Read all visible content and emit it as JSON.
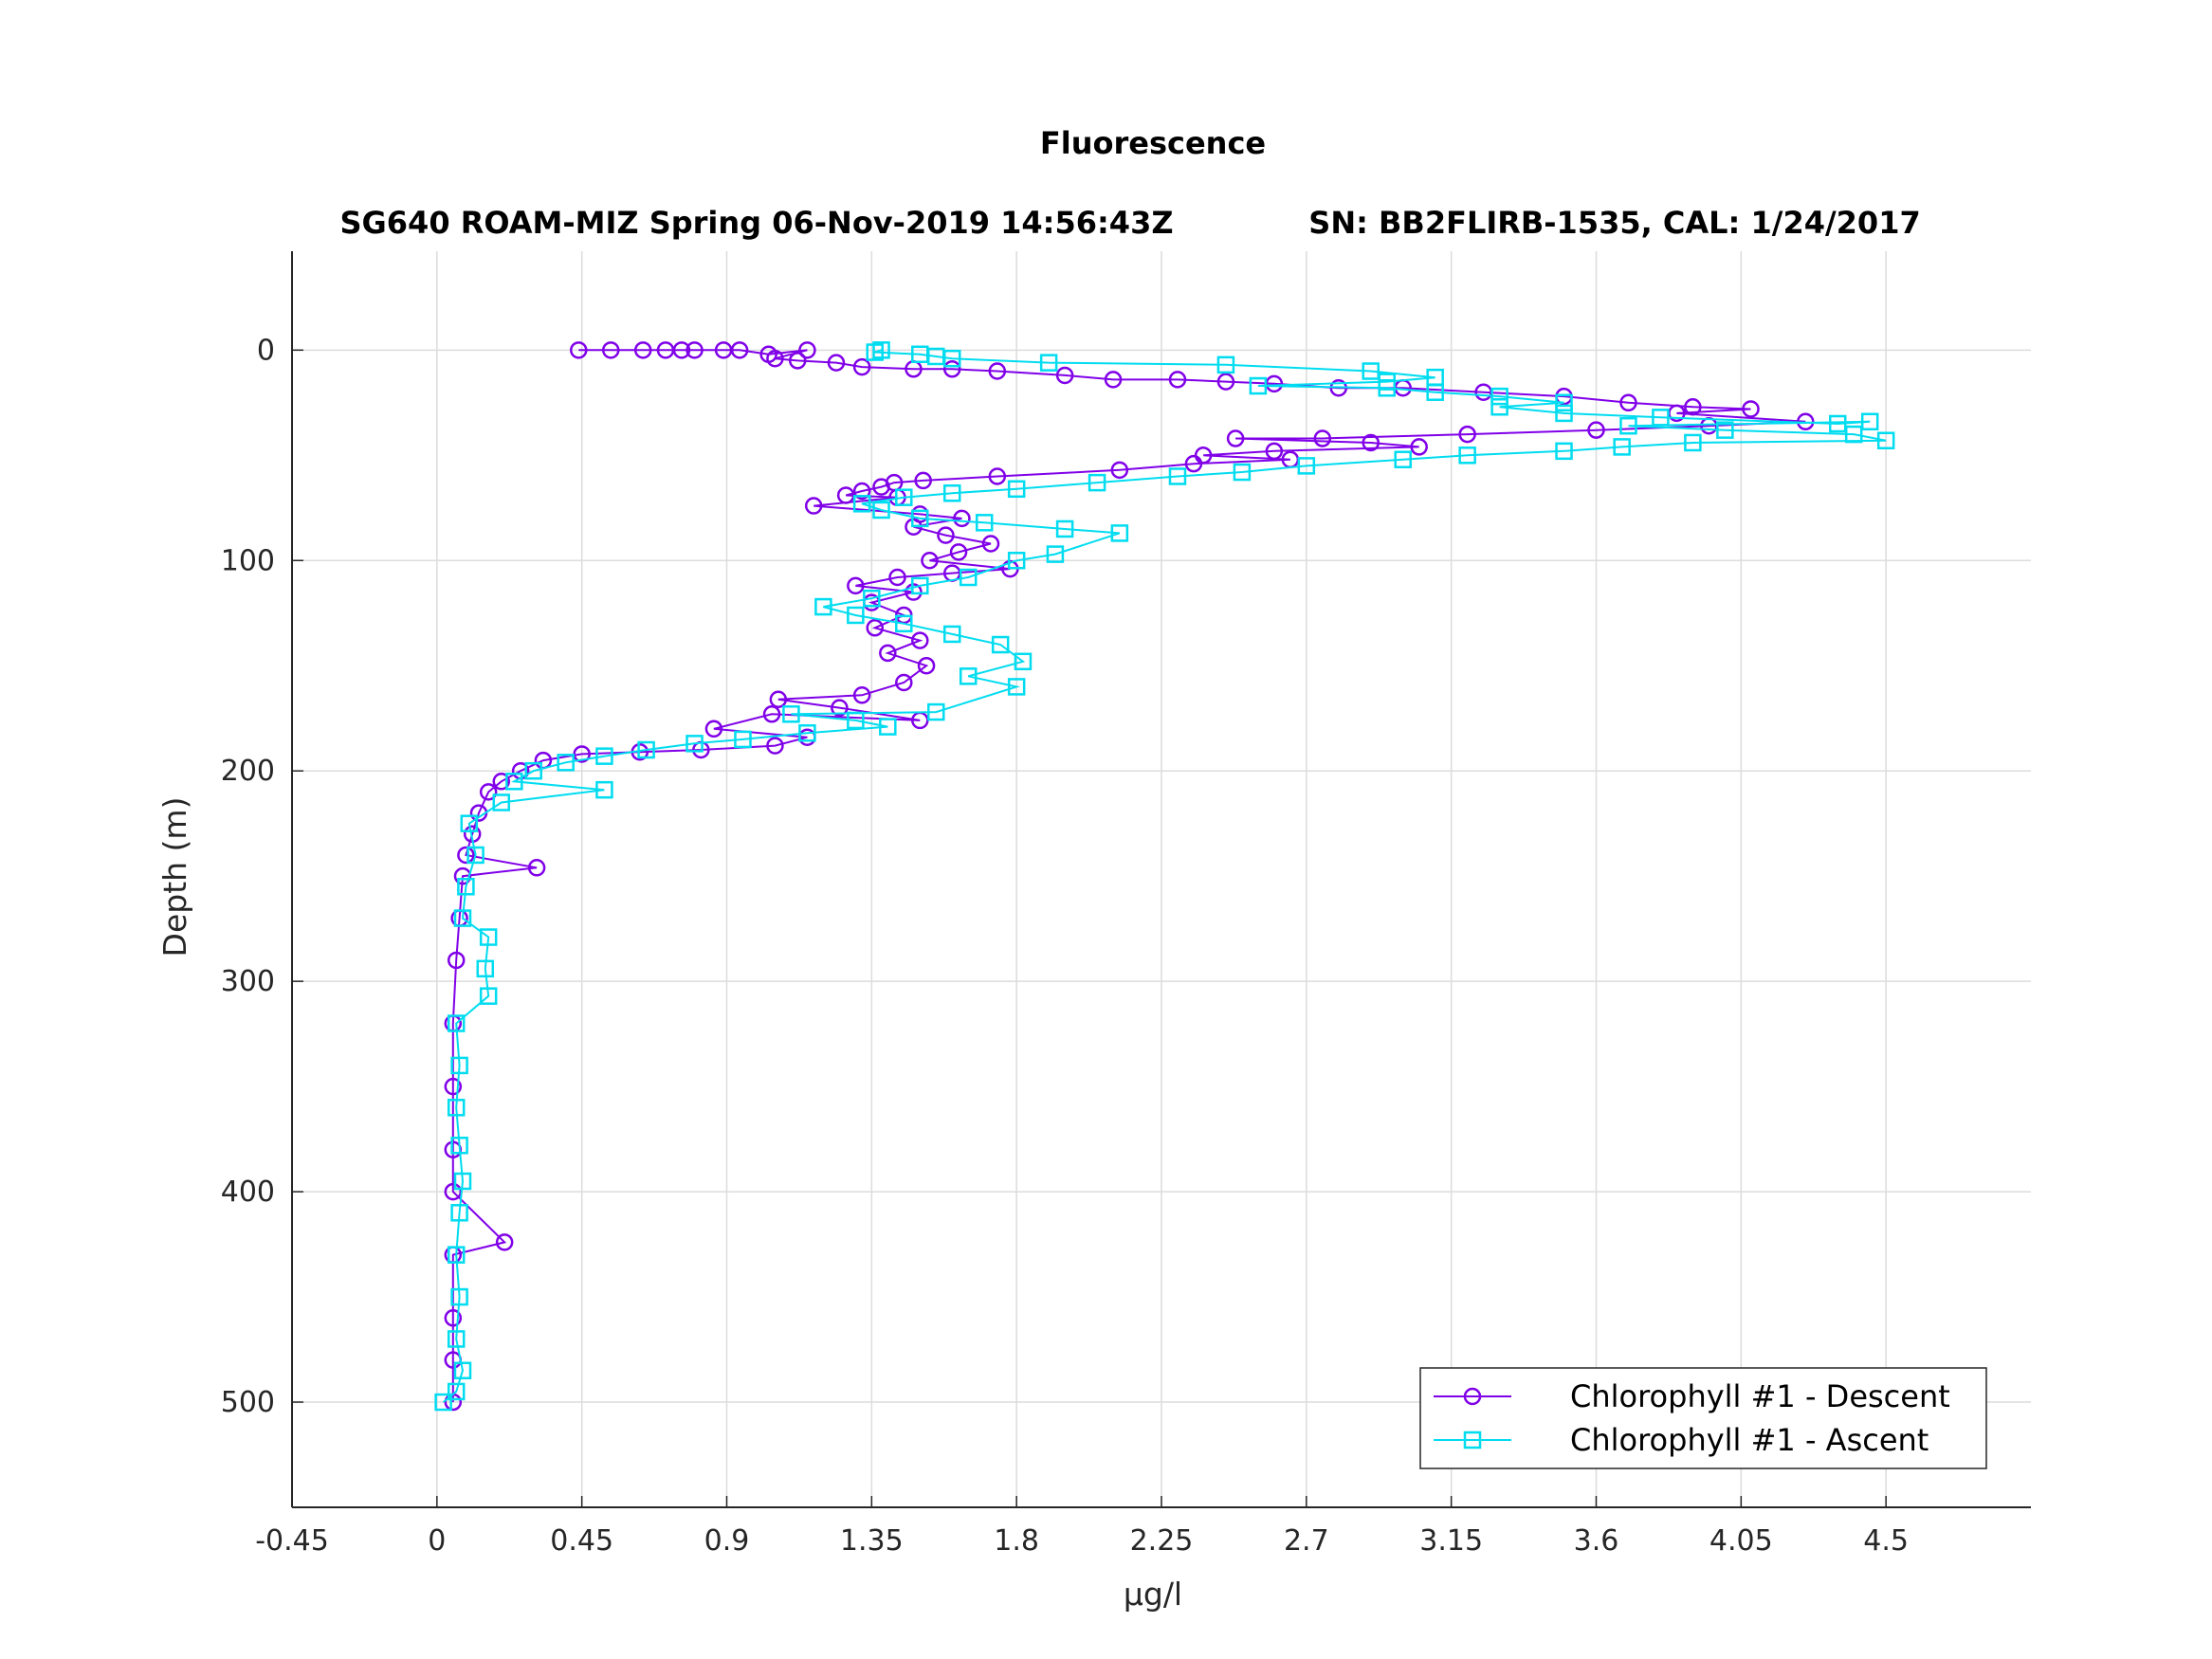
{
  "figure": {
    "title": "Fluorescence",
    "subtitle_left": "SG640 ROAM-MIZ Spring 06-Nov-2019 14:56:43Z",
    "subtitle_right": "SN: BB2FLIRB-1535, CAL: 1/24/2017"
  },
  "chart_data": {
    "type": "line",
    "title": "Fluorescence",
    "xlabel": "μg/l",
    "ylabel": "Depth (m)",
    "xlim": [
      -0.45,
      4.95
    ],
    "ylim": [
      -47,
      550
    ],
    "y_reversed": true,
    "grid": true,
    "legend_position": "bottom-right",
    "x_ticks": [
      -0.45,
      0,
      0.45,
      0.9,
      1.35,
      1.8,
      2.25,
      2.7,
      3.15,
      3.6,
      4.05,
      4.5
    ],
    "x_tick_labels": [
      "-0.45",
      "0",
      "0.45",
      "0.9",
      "1.35",
      "1.8",
      "2.25",
      "2.7",
      "3.15",
      "3.6",
      "4.05",
      "4.5"
    ],
    "y_ticks": [
      0,
      100,
      200,
      300,
      400,
      500
    ],
    "y_tick_labels": [
      "0",
      "100",
      "200",
      "300",
      "400",
      "500"
    ],
    "series": [
      {
        "name": "Chlorophyll #1 - Descent",
        "color": "#8000e8",
        "marker": "circle",
        "points": [
          [
            0.44,
            0
          ],
          [
            0.54,
            0
          ],
          [
            0.64,
            0
          ],
          [
            0.71,
            0
          ],
          [
            0.76,
            0
          ],
          [
            0.8,
            0
          ],
          [
            0.89,
            0
          ],
          [
            0.94,
            0
          ],
          [
            1.03,
            2
          ],
          [
            1.15,
            0
          ],
          [
            1.05,
            4
          ],
          [
            1.12,
            5
          ],
          [
            1.24,
            6
          ],
          [
            1.32,
            8
          ],
          [
            1.48,
            9
          ],
          [
            1.6,
            9
          ],
          [
            1.74,
            10
          ],
          [
            1.95,
            12
          ],
          [
            2.1,
            14
          ],
          [
            2.3,
            14
          ],
          [
            2.45,
            15
          ],
          [
            2.6,
            16
          ],
          [
            2.8,
            18
          ],
          [
            3.0,
            18
          ],
          [
            3.25,
            20
          ],
          [
            3.5,
            22
          ],
          [
            3.7,
            25
          ],
          [
            3.9,
            27
          ],
          [
            4.08,
            28
          ],
          [
            3.85,
            30
          ],
          [
            4.25,
            34
          ],
          [
            3.95,
            36
          ],
          [
            3.6,
            38
          ],
          [
            3.2,
            40
          ],
          [
            2.75,
            42
          ],
          [
            2.48,
            42
          ],
          [
            2.9,
            44
          ],
          [
            3.05,
            46
          ],
          [
            2.6,
            48
          ],
          [
            2.38,
            50
          ],
          [
            2.65,
            52
          ],
          [
            2.35,
            54
          ],
          [
            2.12,
            57
          ],
          [
            1.74,
            60
          ],
          [
            1.51,
            62
          ],
          [
            1.42,
            63
          ],
          [
            1.38,
            65
          ],
          [
            1.32,
            67
          ],
          [
            1.27,
            69
          ],
          [
            1.43,
            70
          ],
          [
            1.17,
            74
          ],
          [
            1.5,
            78
          ],
          [
            1.63,
            80
          ],
          [
            1.48,
            84
          ],
          [
            1.58,
            88
          ],
          [
            1.72,
            92
          ],
          [
            1.62,
            96
          ],
          [
            1.53,
            100
          ],
          [
            1.78,
            104
          ],
          [
            1.6,
            106
          ],
          [
            1.43,
            108
          ],
          [
            1.3,
            112
          ],
          [
            1.48,
            115
          ],
          [
            1.35,
            120
          ],
          [
            1.45,
            126
          ],
          [
            1.36,
            132
          ],
          [
            1.5,
            138
          ],
          [
            1.4,
            144
          ],
          [
            1.52,
            150
          ],
          [
            1.45,
            158
          ],
          [
            1.32,
            164
          ],
          [
            1.06,
            166
          ],
          [
            1.25,
            170
          ],
          [
            1.5,
            176
          ],
          [
            1.04,
            173
          ],
          [
            0.86,
            180
          ],
          [
            1.15,
            184
          ],
          [
            1.05,
            188
          ],
          [
            0.82,
            190
          ],
          [
            0.63,
            191
          ],
          [
            0.45,
            192
          ],
          [
            0.33,
            195
          ],
          [
            0.26,
            200
          ],
          [
            0.2,
            205
          ],
          [
            0.16,
            210
          ],
          [
            0.13,
            220
          ],
          [
            0.11,
            230
          ],
          [
            0.09,
            240
          ],
          [
            0.31,
            246
          ],
          [
            0.08,
            250
          ],
          [
            0.07,
            270
          ],
          [
            0.06,
            290
          ],
          [
            0.05,
            320
          ],
          [
            0.05,
            350
          ],
          [
            0.05,
            380
          ],
          [
            0.05,
            400
          ],
          [
            0.21,
            424
          ],
          [
            0.05,
            430
          ],
          [
            0.05,
            460
          ],
          [
            0.05,
            480
          ],
          [
            0.05,
            500
          ]
        ]
      },
      {
        "name": "Chlorophyll #1 - Ascent",
        "color": "#00dcf0",
        "marker": "square",
        "points": [
          [
            0.02,
            500
          ],
          [
            0.06,
            495
          ],
          [
            0.08,
            485
          ],
          [
            0.06,
            470
          ],
          [
            0.07,
            450
          ],
          [
            0.06,
            430
          ],
          [
            0.07,
            410
          ],
          [
            0.08,
            395
          ],
          [
            0.07,
            378
          ],
          [
            0.06,
            360
          ],
          [
            0.07,
            340
          ],
          [
            0.06,
            320
          ],
          [
            0.16,
            307
          ],
          [
            0.15,
            294
          ],
          [
            0.16,
            279
          ],
          [
            0.08,
            270
          ],
          [
            0.09,
            255
          ],
          [
            0.12,
            240
          ],
          [
            0.1,
            225
          ],
          [
            0.2,
            215
          ],
          [
            0.52,
            209
          ],
          [
            0.24,
            205
          ],
          [
            0.3,
            200
          ],
          [
            0.4,
            196
          ],
          [
            0.52,
            193
          ],
          [
            0.65,
            190
          ],
          [
            0.8,
            187
          ],
          [
            0.95,
            185
          ],
          [
            1.15,
            182
          ],
          [
            1.4,
            179
          ],
          [
            1.3,
            176
          ],
          [
            1.1,
            173
          ],
          [
            1.55,
            172
          ],
          [
            1.8,
            160
          ],
          [
            1.65,
            155
          ],
          [
            1.82,
            148
          ],
          [
            1.75,
            140
          ],
          [
            1.6,
            135
          ],
          [
            1.45,
            130
          ],
          [
            1.3,
            126
          ],
          [
            1.2,
            122
          ],
          [
            1.35,
            118
          ],
          [
            1.5,
            112
          ],
          [
            1.65,
            108
          ],
          [
            1.8,
            100
          ],
          [
            1.92,
            97
          ],
          [
            2.12,
            87
          ],
          [
            1.95,
            85
          ],
          [
            1.7,
            82
          ],
          [
            1.5,
            80
          ],
          [
            1.38,
            76
          ],
          [
            1.32,
            73
          ],
          [
            1.45,
            70
          ],
          [
            1.6,
            68
          ],
          [
            1.8,
            66
          ],
          [
            2.05,
            63
          ],
          [
            2.3,
            60
          ],
          [
            2.5,
            58
          ],
          [
            2.7,
            55
          ],
          [
            3.0,
            52
          ],
          [
            3.2,
            50
          ],
          [
            3.5,
            48
          ],
          [
            3.68,
            46
          ],
          [
            3.9,
            44
          ],
          [
            4.5,
            43
          ],
          [
            4.4,
            40
          ],
          [
            4.0,
            38
          ],
          [
            3.7,
            36
          ],
          [
            4.45,
            34
          ],
          [
            4.35,
            35
          ],
          [
            3.8,
            32
          ],
          [
            3.5,
            30
          ],
          [
            3.3,
            27
          ],
          [
            3.5,
            25
          ],
          [
            3.3,
            22
          ],
          [
            3.1,
            20
          ],
          [
            2.95,
            18
          ],
          [
            2.55,
            17
          ],
          [
            2.95,
            15
          ],
          [
            3.1,
            13
          ],
          [
            2.9,
            10
          ],
          [
            2.45,
            7
          ],
          [
            1.9,
            6
          ],
          [
            1.6,
            4
          ],
          [
            1.55,
            3
          ],
          [
            1.5,
            2
          ],
          [
            1.36,
            1
          ],
          [
            1.38,
            0
          ]
        ]
      }
    ]
  }
}
